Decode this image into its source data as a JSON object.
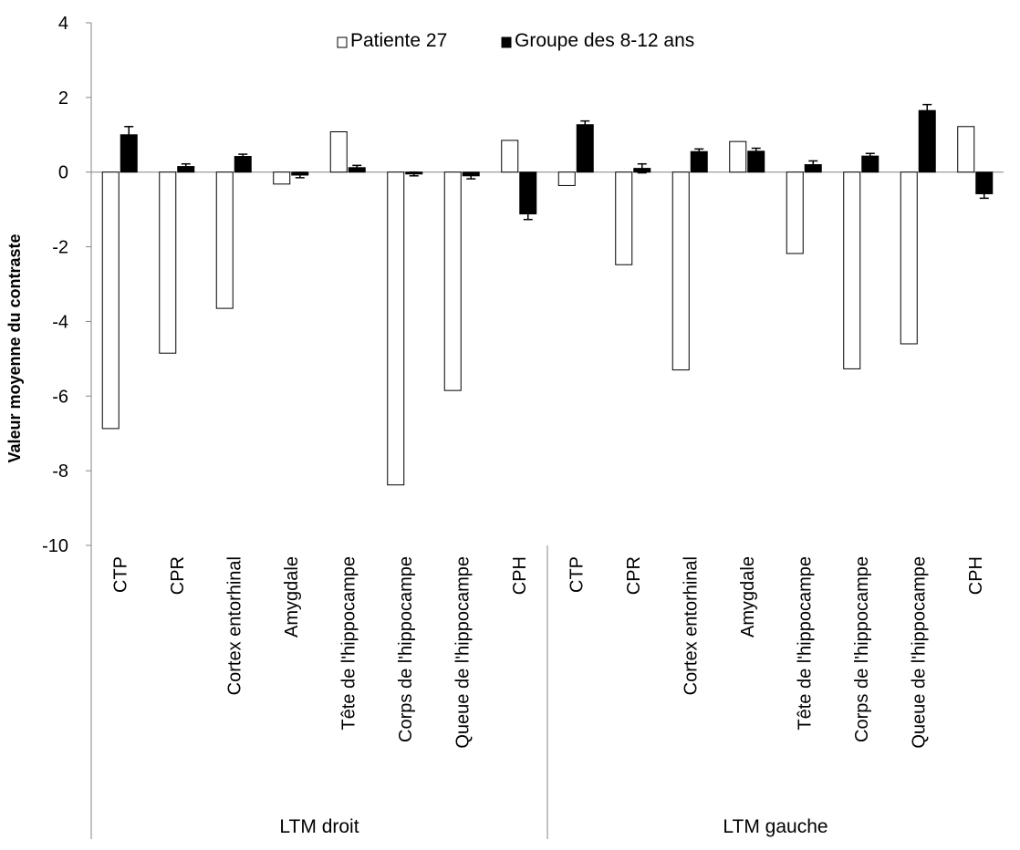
{
  "chart_data": {
    "type": "bar",
    "title": "",
    "xlabel": "",
    "ylabel": "Valeur moyenne du contraste",
    "ylim": [
      -10,
      4
    ],
    "yticks": [
      "4",
      "2",
      "0",
      "-2",
      "-4",
      "-6",
      "-8",
      "-10"
    ],
    "grid": false,
    "legend_position": "top",
    "error_bars": true,
    "groups": [
      {
        "label": "LTM droit",
        "span": 8
      },
      {
        "label": "LTM gauche",
        "span": 8
      }
    ],
    "categories": [
      "CTP",
      "CPR",
      "Cortex entorhinal",
      "Amygdale",
      "Tête de l'hippocampe",
      "Corps de l'hippocampe",
      "Queue de l'hippocampe",
      "CPH",
      "CTP",
      "CPR",
      "Cortex entorhinal",
      "Amygdale",
      "Tête de l'hippocampe",
      "Corps de l'hippocampe",
      "Queue de l'hippocampe",
      "CPH"
    ],
    "series": [
      {
        "name": "Patiente 27",
        "color": "#ffffff",
        "stroke": "#000000",
        "values": [
          -6.87,
          -4.85,
          -3.65,
          -0.32,
          1.08,
          -8.38,
          -5.85,
          0.85,
          -0.36,
          -2.48,
          -5.3,
          0.82,
          -2.18,
          -5.27,
          -4.6,
          1.22
        ]
      },
      {
        "name": "Groupe des 8-12 ans",
        "color": "#000000",
        "stroke": "#000000",
        "values": [
          1.0,
          0.15,
          0.42,
          -0.08,
          0.12,
          -0.05,
          -0.1,
          -1.12,
          1.27,
          0.1,
          0.55,
          0.56,
          0.2,
          0.43,
          1.65,
          -0.58
        ],
        "errors": [
          0.22,
          0.07,
          0.06,
          0.07,
          0.06,
          0.05,
          0.08,
          0.15,
          0.1,
          0.12,
          0.07,
          0.08,
          0.1,
          0.07,
          0.16,
          0.12
        ]
      }
    ]
  }
}
